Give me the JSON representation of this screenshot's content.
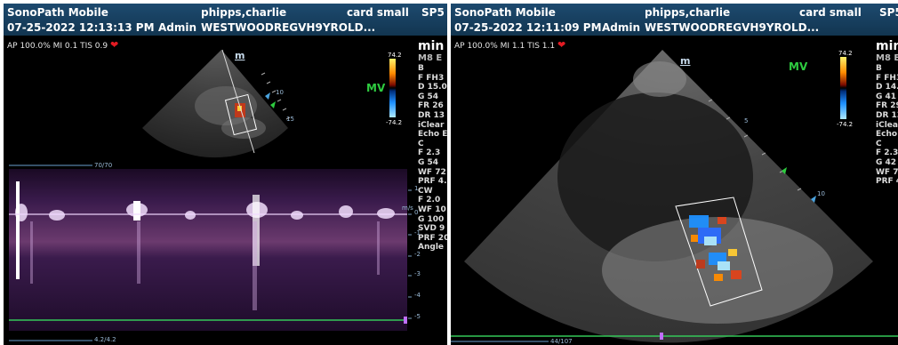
{
  "left": {
    "header": {
      "app": "SonoPath Mobile",
      "patient": "phipps,charlie",
      "preset": "card small",
      "probe": "SP5",
      "datetime": "07-25-2022 12:13:13 PM",
      "user": "Admin",
      "study": "WESTWOODREGVH9YROLD..."
    },
    "info": "AP 100.0%  MI 0.1  TIS 0.9",
    "side_title": "min",
    "side_sub": "M8 E",
    "params": [
      "B",
      "F FH3",
      "D 15.0",
      "G 54",
      "FR 26",
      "DR 13",
      "iClear",
      "Echo E",
      "C",
      "F 2.3",
      "G 54",
      "WF 72",
      "PRF 4.",
      "CW",
      "F 2.0",
      "WF 10",
      "G 100",
      "SVD 9",
      "PRF 20",
      "Angle"
    ],
    "mv": "MV",
    "cbar_top": "74.2",
    "cbar_bottom": "-74.2",
    "top_readout": "70/70",
    "bottom_readout": "4.2/4.2",
    "velocity_unit": "m/s",
    "velocity_ticks": [
      "1",
      "0",
      "-1",
      "-2",
      "-3",
      "-4",
      "-5"
    ],
    "depth_marks": [
      "5",
      "10",
      "15"
    ],
    "m_label": "m"
  },
  "right": {
    "header": {
      "app": "SonoPath Mobile",
      "patient": "phipps,charlie",
      "preset": "card small",
      "probe": "SP5",
      "datetime": "07-25-2022 12:11:09 PM",
      "user": "Admin",
      "study": "WESTWOODREGVH9YROLD..."
    },
    "info": "AP 100.0%  MI 1.1  TIS 1.1",
    "side_title": "min",
    "side_sub": "M8 E",
    "params": [
      "B",
      "F FH3",
      "D 14.0",
      "G 41",
      "FR 29",
      "DR 13",
      "iClear",
      "Echo E",
      "C",
      "F 2.3",
      "G 42",
      "WF 72",
      "PRF 4."
    ],
    "mv": "MV",
    "cbar_top": "74.2",
    "cbar_bottom": "-74.2",
    "bottom_readout": "44/107",
    "depth_marks": [
      "5",
      "10"
    ],
    "m_label": "m"
  },
  "colors": {
    "header": "#1d4a6f",
    "mv": "#2ecc40",
    "heart": "#e31b23",
    "baseline": "#34c759"
  }
}
